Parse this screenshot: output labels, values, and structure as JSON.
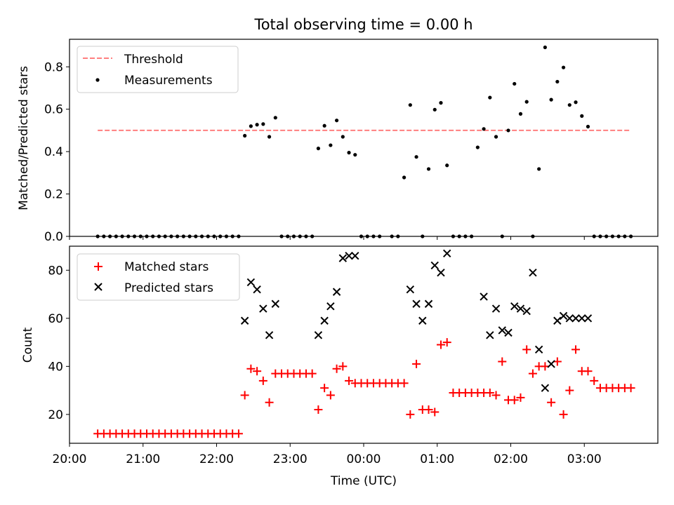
{
  "title": "Total observing time = 0.00 h",
  "colors": {
    "threshold": "#ff7f7f",
    "measurements": "#000000",
    "matched": "#ff0000",
    "predicted": "#000000"
  },
  "chart_data": [
    {
      "type": "scatter",
      "ylabel": "Matched/Predicted stars",
      "xlim": [
        "20:00",
        "04:00"
      ],
      "ylim": [
        0,
        0.93
      ],
      "yticks": [
        "0.0",
        "0.2",
        "0.4",
        "0.6",
        "0.8"
      ],
      "legend": {
        "placement": "top-left",
        "threshold": "Threshold",
        "measurements": "Measurements"
      },
      "threshold": {
        "value": 0.5,
        "x_start": "20:23",
        "x_end": "03:37"
      },
      "measurements": {
        "x": [
          "20:23",
          "20:28",
          "20:33",
          "20:38",
          "20:43",
          "20:48",
          "20:53",
          "20:58",
          "21:03",
          "21:08",
          "21:13",
          "21:18",
          "21:23",
          "21:28",
          "21:33",
          "21:38",
          "21:43",
          "21:48",
          "21:53",
          "21:58",
          "22:03",
          "22:08",
          "22:13",
          "22:18",
          "22:23",
          "22:28",
          "22:33",
          "22:38",
          "22:43",
          "22:48",
          "22:53",
          "22:58",
          "23:03",
          "23:08",
          "23:13",
          "23:18",
          "23:23",
          "23:28",
          "23:33",
          "23:38",
          "23:43",
          "23:48",
          "23:53",
          "23:58",
          "00:03",
          "00:08",
          "00:13",
          "00:23",
          "00:28",
          "00:33",
          "00:38",
          "00:43",
          "00:48",
          "00:53",
          "00:58",
          "01:03",
          "01:08",
          "01:13",
          "01:18",
          "01:23",
          "01:28",
          "01:33",
          "01:38",
          "01:43",
          "01:48",
          "01:53",
          "01:58",
          "02:03",
          "02:08",
          "02:13",
          "02:18",
          "02:23",
          "02:28",
          "02:33",
          "02:38",
          "02:43",
          "02:48",
          "02:53",
          "02:58",
          "03:03",
          "03:08",
          "03:13",
          "03:18",
          "03:23",
          "03:28",
          "03:33",
          "03:38"
        ],
        "y": [
          0,
          0,
          0,
          0,
          0,
          0,
          0,
          0,
          0,
          0,
          0,
          0,
          0,
          0,
          0,
          0,
          0,
          0,
          0,
          0,
          0,
          0,
          0,
          0,
          0.475,
          0.52,
          0.527,
          0.53,
          0.47,
          0.56,
          0,
          0,
          0,
          0,
          0,
          0,
          0.415,
          0.522,
          0.43,
          0.547,
          0.47,
          0.395,
          0.385,
          0,
          0,
          0,
          0,
          0,
          0,
          0.278,
          0.62,
          0.375,
          0,
          0.318,
          0.598,
          0.63,
          0.335,
          0,
          0,
          0,
          0,
          0.42,
          0.507,
          0.655,
          0.47,
          0,
          0.5,
          0.72,
          0.578,
          0.635,
          0,
          0.318,
          0.892,
          0.645,
          0.73,
          0.797,
          0.62,
          0.633,
          0.568,
          0.518,
          0,
          0,
          0,
          0,
          0,
          0,
          0
        ]
      }
    },
    {
      "type": "scatter",
      "xlabel": "Time (UTC)",
      "ylabel": "Count",
      "xlim": [
        "20:00",
        "04:00"
      ],
      "xticks": [
        "20:00",
        "21:00",
        "22:00",
        "23:00",
        "00:00",
        "01:00",
        "02:00",
        "03:00"
      ],
      "ylim": [
        8,
        90
      ],
      "yticks": [
        "20",
        "40",
        "60",
        "80"
      ],
      "legend": {
        "placement": "top-left",
        "matched": "Matched stars",
        "predicted": "Predicted stars"
      },
      "matched": {
        "x": [
          "20:23",
          "20:28",
          "20:33",
          "20:38",
          "20:43",
          "20:48",
          "20:53",
          "20:58",
          "21:03",
          "21:08",
          "21:13",
          "21:18",
          "21:23",
          "21:28",
          "21:33",
          "21:38",
          "21:43",
          "21:48",
          "21:53",
          "21:58",
          "22:03",
          "22:08",
          "22:13",
          "22:18",
          "22:23",
          "22:28",
          "22:33",
          "22:38",
          "22:43",
          "22:48",
          "22:53",
          "22:58",
          "23:03",
          "23:08",
          "23:13",
          "23:18",
          "23:23",
          "23:28",
          "23:33",
          "23:38",
          "23:43",
          "23:48",
          "23:53",
          "23:58",
          "00:03",
          "00:08",
          "00:13",
          "00:18",
          "00:23",
          "00:28",
          "00:33",
          "00:38",
          "00:43",
          "00:48",
          "00:53",
          "00:58",
          "01:03",
          "01:08",
          "01:13",
          "01:18",
          "01:23",
          "01:28",
          "01:33",
          "01:38",
          "01:43",
          "01:48",
          "01:53",
          "01:58",
          "02:03",
          "02:08",
          "02:13",
          "02:18",
          "02:23",
          "02:28",
          "02:33",
          "02:38",
          "02:43",
          "02:48",
          "02:53",
          "02:58",
          "03:03",
          "03:08",
          "03:13",
          "03:18",
          "03:23",
          "03:28",
          "03:33",
          "03:38"
        ],
        "y": [
          12,
          12,
          12,
          12,
          12,
          12,
          12,
          12,
          12,
          12,
          12,
          12,
          12,
          12,
          12,
          12,
          12,
          12,
          12,
          12,
          12,
          12,
          12,
          12,
          28,
          39,
          38,
          34,
          25,
          37,
          37,
          37,
          37,
          37,
          37,
          37,
          22,
          31,
          28,
          39,
          40,
          34,
          33,
          33,
          33,
          33,
          33,
          33,
          33,
          33,
          33,
          20,
          41,
          22,
          22,
          21,
          49,
          50,
          29,
          29,
          29,
          29,
          29,
          29,
          29,
          28,
          42,
          26,
          26,
          27,
          47,
          37,
          40,
          40,
          25,
          42,
          20,
          30,
          47,
          38,
          38,
          34,
          31,
          31,
          31,
          31,
          31,
          31
        ]
      },
      "predicted": {
        "x": [
          "22:23",
          "22:28",
          "22:33",
          "22:38",
          "22:43",
          "22:48",
          "23:23",
          "23:28",
          "23:33",
          "23:38",
          "23:43",
          "23:48",
          "23:53",
          "00:38",
          "00:43",
          "00:48",
          "00:53",
          "00:58",
          "01:03",
          "01:08",
          "01:38",
          "01:43",
          "01:48",
          "01:53",
          "01:58",
          "02:03",
          "02:08",
          "02:13",
          "02:18",
          "02:23",
          "02:28",
          "02:33",
          "02:38",
          "02:43",
          "02:48",
          "02:53",
          "02:58",
          "03:03"
        ],
        "y": [
          59,
          75,
          72,
          64,
          53,
          66,
          53,
          59,
          65,
          71,
          85,
          86,
          86,
          72,
          66,
          59,
          66,
          82,
          79,
          87,
          69,
          53,
          64,
          55,
          54,
          65,
          64,
          63,
          79,
          47,
          31,
          41,
          59,
          61,
          60,
          60,
          60,
          60
        ]
      }
    }
  ]
}
